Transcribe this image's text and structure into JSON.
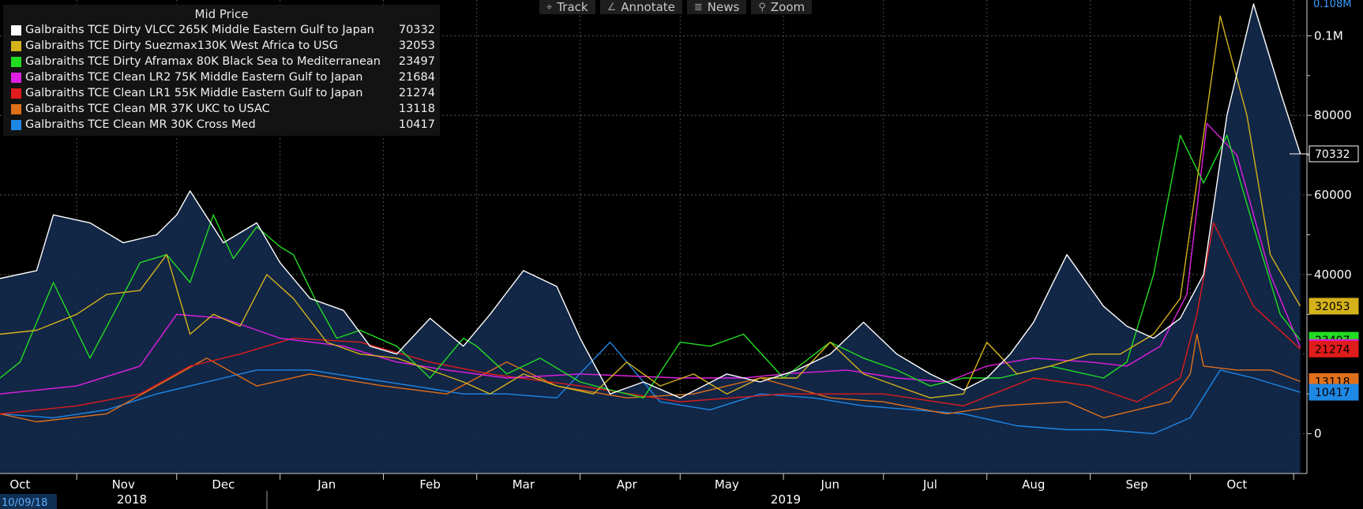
{
  "toolbar": {
    "buttons": [
      {
        "label": "Track",
        "icon": "crosshair-icon",
        "glyph": "⌖"
      },
      {
        "label": "Annotate",
        "icon": "pencil-icon",
        "glyph": "∠"
      },
      {
        "label": "News",
        "icon": "news-icon",
        "glyph": "≣"
      },
      {
        "label": "Zoom",
        "icon": "magnifier-icon",
        "glyph": "⚲"
      }
    ]
  },
  "legend": {
    "title": "Mid Price",
    "items": [
      {
        "name": "Galbraiths TCE Dirty VLCC 265K Middle Eastern Gulf to Japan",
        "value": "70332",
        "color": "#ffffff"
      },
      {
        "name": "Galbraiths TCE Dirty Suezmax130K West Africa to USG",
        "value": "32053",
        "color": "#d4b21a"
      },
      {
        "name": "Galbraiths TCE Dirty Aframax 80K Black Sea to Mediterranean",
        "value": "23497",
        "color": "#22dd22"
      },
      {
        "name": "Galbraiths TCE Clean LR2 75K Middle Eastern Gulf to Japan",
        "value": "21684",
        "color": "#e020e0"
      },
      {
        "name": "Galbraiths TCE Clean LR1 55K Middle Eastern Gulf to Japan",
        "value": "21274",
        "color": "#e01c1c"
      },
      {
        "name": "Galbraiths TCE Clean MR 37K UKC to USAC",
        "value": "13118",
        "color": "#e0701a"
      },
      {
        "name": "Galbraiths TCE Clean MR 30K Cross Med",
        "value": "10417",
        "color": "#1e88e5"
      }
    ]
  },
  "axis": {
    "start_date_label": "10/09/18",
    "years": [
      "2018",
      "2019"
    ],
    "top_cut_label": "0.108M",
    "y_ticks": [
      {
        "value": 0,
        "label": "0"
      },
      {
        "value": 40000,
        "label": "40000"
      },
      {
        "value": 60000,
        "label": "60000"
      },
      {
        "value": 80000,
        "label": "80000"
      },
      {
        "value": 100000,
        "label": "0.1M"
      }
    ]
  },
  "chart_data": {
    "type": "line",
    "x_unit": "date",
    "ylim": [
      -10000,
      109000
    ],
    "grid": true,
    "legend_position": "top-left",
    "months": [
      {
        "label": "Oct",
        "date": "2018-10-15"
      },
      {
        "label": "Nov",
        "date": "2018-11-15"
      },
      {
        "label": "Dec",
        "date": "2018-12-15"
      },
      {
        "label": "Jan",
        "date": "2019-01-15"
      },
      {
        "label": "Feb",
        "date": "2019-02-15"
      },
      {
        "label": "Mar",
        "date": "2019-03-15"
      },
      {
        "label": "Apr",
        "date": "2019-04-15"
      },
      {
        "label": "May",
        "date": "2019-05-15"
      },
      {
        "label": "Jun",
        "date": "2019-06-15"
      },
      {
        "label": "Jul",
        "date": "2019-07-15"
      },
      {
        "label": "Aug",
        "date": "2019-08-15"
      },
      {
        "label": "Sep",
        "date": "2019-09-15"
      },
      {
        "label": "Oct",
        "date": "2019-10-15"
      }
    ],
    "x_start": "2018-10-09",
    "x_end": "2019-11-05",
    "series": [
      {
        "name": "Galbraiths TCE Dirty VLCC 265K Middle Eastern Gulf to Japan",
        "color": "#ffffff",
        "area": true,
        "x": [
          "2018-10-09",
          "2018-10-20",
          "2018-10-25",
          "2018-11-05",
          "2018-11-15",
          "2018-11-25",
          "2018-12-01",
          "2018-12-05",
          "2018-12-15",
          "2018-12-25",
          "2019-01-01",
          "2019-01-10",
          "2019-01-20",
          "2019-01-28",
          "2019-02-05",
          "2019-02-15",
          "2019-02-25",
          "2019-03-05",
          "2019-03-15",
          "2019-03-25",
          "2019-04-01",
          "2019-04-10",
          "2019-04-20",
          "2019-05-01",
          "2019-05-15",
          "2019-05-25",
          "2019-06-05",
          "2019-06-15",
          "2019-06-25",
          "2019-07-05",
          "2019-07-15",
          "2019-07-25",
          "2019-08-01",
          "2019-08-08",
          "2019-08-15",
          "2019-08-25",
          "2019-09-05",
          "2019-09-12",
          "2019-09-20",
          "2019-09-28",
          "2019-10-05",
          "2019-10-12",
          "2019-10-20",
          "2019-10-28",
          "2019-11-03"
        ],
        "y": [
          39000,
          41000,
          55000,
          53000,
          48000,
          50000,
          55000,
          61000,
          48000,
          53000,
          43000,
          34000,
          31000,
          22000,
          20000,
          29000,
          22000,
          30000,
          41000,
          37000,
          24000,
          10000,
          13000,
          9000,
          15000,
          13000,
          16000,
          20000,
          28000,
          20000,
          15000,
          11000,
          14000,
          20000,
          28000,
          45000,
          32000,
          27000,
          24000,
          29000,
          40000,
          80000,
          108000,
          86000,
          70332
        ]
      },
      {
        "name": "Galbraiths TCE Dirty Suezmax130K West Africa to USG",
        "color": "#d4b21a",
        "x": [
          "2018-10-09",
          "2018-10-20",
          "2018-11-01",
          "2018-11-10",
          "2018-11-20",
          "2018-11-28",
          "2018-12-05",
          "2018-12-12",
          "2018-12-20",
          "2018-12-28",
          "2019-01-05",
          "2019-01-15",
          "2019-01-25",
          "2019-02-05",
          "2019-02-15",
          "2019-02-25",
          "2019-03-05",
          "2019-03-15",
          "2019-03-25",
          "2019-04-05",
          "2019-04-15",
          "2019-04-25",
          "2019-05-05",
          "2019-05-15",
          "2019-05-25",
          "2019-06-05",
          "2019-06-15",
          "2019-06-25",
          "2019-07-05",
          "2019-07-15",
          "2019-07-25",
          "2019-08-01",
          "2019-08-10",
          "2019-08-20",
          "2019-09-01",
          "2019-09-10",
          "2019-09-20",
          "2019-09-28",
          "2019-10-05",
          "2019-10-10",
          "2019-10-18",
          "2019-10-25",
          "2019-11-03"
        ],
        "y": [
          25000,
          26000,
          30000,
          35000,
          36000,
          45000,
          25000,
          30000,
          27000,
          40000,
          34000,
          23000,
          20000,
          19000,
          16000,
          13000,
          10000,
          15000,
          12000,
          10000,
          18000,
          12000,
          15000,
          10000,
          14000,
          14000,
          23000,
          15000,
          12000,
          9000,
          10000,
          23000,
          15000,
          17000,
          20000,
          20000,
          25000,
          34000,
          75000,
          105000,
          80000,
          45000,
          32053
        ]
      },
      {
        "name": "Galbraiths TCE Dirty Aframax 80K Black Sea to Mediterranean",
        "color": "#22dd22",
        "x": [
          "2018-10-09",
          "2018-10-15",
          "2018-10-25",
          "2018-11-05",
          "2018-11-12",
          "2018-11-20",
          "2018-11-28",
          "2018-12-05",
          "2018-12-12",
          "2018-12-18",
          "2018-12-25",
          "2019-01-01",
          "2019-01-05",
          "2019-01-12",
          "2019-01-18",
          "2019-01-25",
          "2019-02-05",
          "2019-02-15",
          "2019-02-25",
          "2019-03-01",
          "2019-03-10",
          "2019-03-20",
          "2019-04-01",
          "2019-04-10",
          "2019-04-20",
          "2019-05-01",
          "2019-05-10",
          "2019-05-20",
          "2019-06-01",
          "2019-06-15",
          "2019-06-25",
          "2019-07-05",
          "2019-07-15",
          "2019-07-25",
          "2019-08-05",
          "2019-08-20",
          "2019-09-05",
          "2019-09-12",
          "2019-09-20",
          "2019-09-28",
          "2019-10-05",
          "2019-10-12",
          "2019-10-20",
          "2019-10-28",
          "2019-11-03"
        ],
        "y": [
          14000,
          18000,
          38000,
          19000,
          30000,
          43000,
          45000,
          38000,
          55000,
          44000,
          52000,
          47000,
          45000,
          33000,
          24000,
          26000,
          22000,
          14000,
          24000,
          22000,
          15000,
          19000,
          13000,
          11000,
          9000,
          23000,
          22000,
          25000,
          14000,
          23000,
          19000,
          16000,
          12000,
          14000,
          14000,
          17000,
          14000,
          18000,
          40000,
          75000,
          63000,
          75000,
          52000,
          30000,
          23497
        ]
      },
      {
        "name": "Galbraiths TCE Clean LR2 75K Middle Eastern Gulf to Japan",
        "color": "#e020e0",
        "x": [
          "2018-10-09",
          "2018-11-01",
          "2018-11-20",
          "2018-12-01",
          "2018-12-15",
          "2019-01-01",
          "2019-01-20",
          "2019-02-05",
          "2019-02-20",
          "2019-03-10",
          "2019-04-01",
          "2019-05-01",
          "2019-05-20",
          "2019-06-01",
          "2019-06-20",
          "2019-07-05",
          "2019-07-20",
          "2019-08-01",
          "2019-08-15",
          "2019-09-01",
          "2019-09-12",
          "2019-09-22",
          "2019-09-30",
          "2019-10-06",
          "2019-10-15",
          "2019-10-25",
          "2019-11-03"
        ],
        "y": [
          10000,
          12000,
          17000,
          30000,
          29000,
          24000,
          22000,
          18000,
          16000,
          14000,
          15000,
          14000,
          14000,
          15000,
          16000,
          14000,
          13000,
          17000,
          19000,
          18000,
          17000,
          22000,
          35000,
          78000,
          70000,
          40000,
          21684
        ]
      },
      {
        "name": "Galbraiths TCE Clean LR1 55K Middle Eastern Gulf to Japan",
        "color": "#e01c1c",
        "x": [
          "2018-10-09",
          "2018-11-01",
          "2018-11-20",
          "2018-12-05",
          "2018-12-20",
          "2019-01-05",
          "2019-01-25",
          "2019-02-15",
          "2019-03-05",
          "2019-04-01",
          "2019-05-01",
          "2019-06-01",
          "2019-07-01",
          "2019-07-25",
          "2019-08-15",
          "2019-09-01",
          "2019-09-15",
          "2019-09-28",
          "2019-10-03",
          "2019-10-08",
          "2019-10-20",
          "2019-11-03"
        ],
        "y": [
          5000,
          7000,
          10000,
          17000,
          20000,
          24000,
          23000,
          18000,
          15000,
          12000,
          8000,
          10000,
          10000,
          7000,
          14000,
          12000,
          8000,
          14000,
          30000,
          53000,
          32000,
          21274
        ]
      },
      {
        "name": "Galbraiths TCE Clean MR 37K UKC to USAC",
        "color": "#e0701a",
        "x": [
          "2018-10-09",
          "2018-10-20",
          "2018-11-10",
          "2018-11-25",
          "2018-12-10",
          "2018-12-25",
          "2019-01-10",
          "2019-02-01",
          "2019-02-20",
          "2019-03-10",
          "2019-03-25",
          "2019-04-15",
          "2019-05-05",
          "2019-05-25",
          "2019-06-15",
          "2019-07-01",
          "2019-07-20",
          "2019-08-05",
          "2019-08-25",
          "2019-09-05",
          "2019-09-25",
          "2019-10-01",
          "2019-10-03",
          "2019-10-05",
          "2019-10-15",
          "2019-10-25",
          "2019-11-03"
        ],
        "y": [
          5000,
          3000,
          5000,
          12000,
          19000,
          12000,
          15000,
          12000,
          10000,
          18000,
          12000,
          9000,
          10000,
          14000,
          9000,
          8000,
          5000,
          7000,
          8000,
          4000,
          8000,
          15000,
          25000,
          17000,
          16000,
          16000,
          13118
        ]
      },
      {
        "name": "Galbraiths TCE Clean MR 30K Cross Med",
        "color": "#1e88e5",
        "x": [
          "2018-10-09",
          "2018-10-25",
          "2018-11-10",
          "2018-11-25",
          "2018-12-10",
          "2018-12-25",
          "2019-01-10",
          "2019-01-25",
          "2019-02-10",
          "2019-02-25",
          "2019-03-10",
          "2019-03-25",
          "2019-04-10",
          "2019-04-25",
          "2019-05-10",
          "2019-05-25",
          "2019-06-10",
          "2019-06-25",
          "2019-07-10",
          "2019-07-25",
          "2019-08-10",
          "2019-08-25",
          "2019-09-05",
          "2019-09-20",
          "2019-10-01",
          "2019-10-10",
          "2019-10-20",
          "2019-11-03"
        ],
        "y": [
          5000,
          4000,
          6000,
          10000,
          13000,
          16000,
          16000,
          14000,
          12000,
          10000,
          10000,
          9000,
          23000,
          8000,
          6000,
          10000,
          9000,
          7000,
          6000,
          5000,
          2000,
          1000,
          1000,
          0,
          4000,
          16000,
          14000,
          10417
        ]
      }
    ]
  }
}
